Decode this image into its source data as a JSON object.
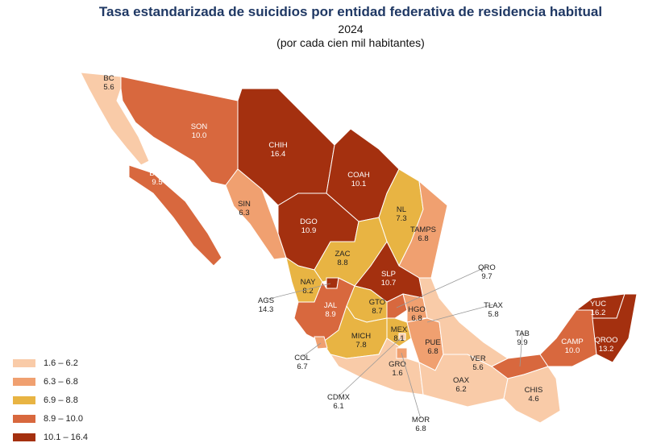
{
  "header": {
    "title": "Tasa estandarizada de suicidios por entidad federativa de residencia habitual",
    "year": "2024",
    "subtitle": "(por cada cien mil habitantes)"
  },
  "legend": [
    {
      "label": "1.6 – 6.2",
      "color": "#f9cba8"
    },
    {
      "label": "6.3 – 6.8",
      "color": "#f0a070"
    },
    {
      "label": "6.9 – 8.8",
      "color": "#e8b443"
    },
    {
      "label": "8.9 – 10.0",
      "color": "#d8683e"
    },
    {
      "label": "10.1 – 16.4",
      "color": "#a4300f"
    }
  ],
  "states": [
    {
      "code": "BC",
      "value": "5.6",
      "class": 0
    },
    {
      "code": "SON",
      "value": "10.0",
      "class": 3
    },
    {
      "code": "CHIH",
      "value": "16.4",
      "class": 4
    },
    {
      "code": "COAH",
      "value": "10.1",
      "class": 4
    },
    {
      "code": "BCS",
      "value": "9.5",
      "class": 3
    },
    {
      "code": "SIN",
      "value": "6.3",
      "class": 1
    },
    {
      "code": "DGO",
      "value": "10.9",
      "class": 4
    },
    {
      "code": "NL",
      "value": "7.3",
      "class": 2
    },
    {
      "code": "TAMPS",
      "value": "6.8",
      "class": 1
    },
    {
      "code": "ZAC",
      "value": "8.8",
      "class": 2
    },
    {
      "code": "SLP",
      "value": "10.7",
      "class": 4
    },
    {
      "code": "NAY",
      "value": "8.2",
      "class": 2
    },
    {
      "code": "AGS",
      "value": "14.3",
      "class": 4
    },
    {
      "code": "JAL",
      "value": "8.9",
      "class": 3
    },
    {
      "code": "GTO",
      "value": "8.7",
      "class": 2
    },
    {
      "code": "QRO",
      "value": "9.7",
      "class": 3
    },
    {
      "code": "HGO",
      "value": "6.8",
      "class": 1
    },
    {
      "code": "TLAX",
      "value": "5.8",
      "class": 0
    },
    {
      "code": "MEX",
      "value": "8.1",
      "class": 2
    },
    {
      "code": "MICH",
      "value": "7.8",
      "class": 2
    },
    {
      "code": "COL",
      "value": "6.7",
      "class": 1
    },
    {
      "code": "CDMX",
      "value": "6.1",
      "class": 0
    },
    {
      "code": "GRO",
      "value": "1.6",
      "class": 0
    },
    {
      "code": "MOR",
      "value": "6.8",
      "class": 1
    },
    {
      "code": "PUE",
      "value": "6.8",
      "class": 1
    },
    {
      "code": "VER",
      "value": "5.6",
      "class": 0
    },
    {
      "code": "OAX",
      "value": "6.2",
      "class": 0
    },
    {
      "code": "TAB",
      "value": "9.9",
      "class": 3
    },
    {
      "code": "CHIS",
      "value": "4.6",
      "class": 0
    },
    {
      "code": "CAMP",
      "value": "10.0",
      "class": 3
    },
    {
      "code": "YUC",
      "value": "16.2",
      "class": 4
    },
    {
      "code": "QROO",
      "value": "13.2",
      "class": 4
    }
  ]
}
